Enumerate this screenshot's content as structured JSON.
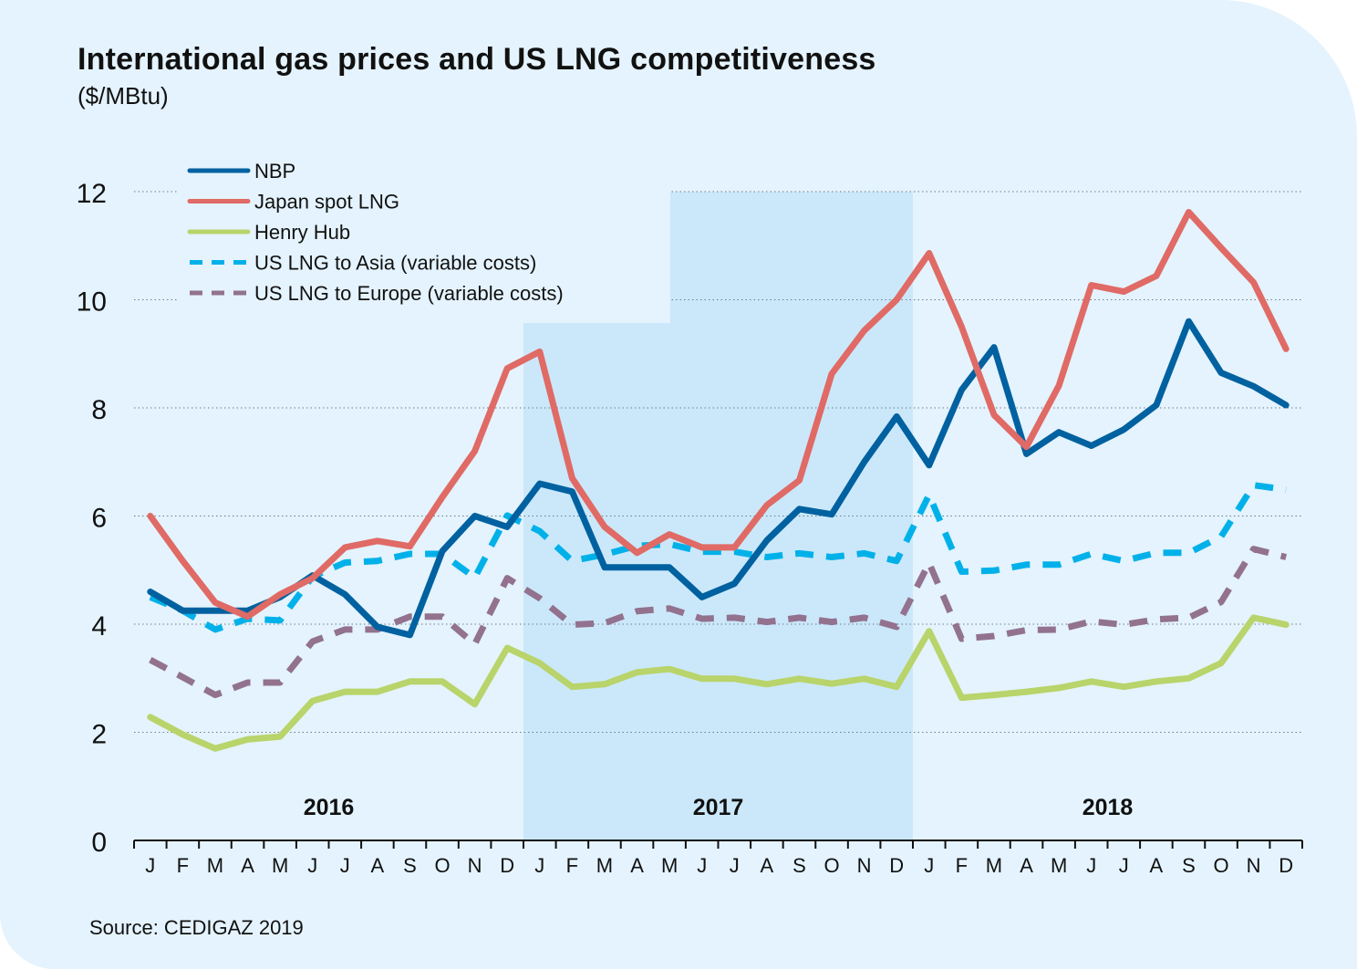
{
  "title": "International gas prices and US LNG competitiveness",
  "subtitle": "($/MBtu)",
  "source": "Source: CEDIGAZ 2019",
  "chart_data": {
    "type": "line",
    "title": "International gas prices and US LNG competitiveness",
    "ylabel": "($/MBtu)",
    "xlabel": "",
    "ylim": [
      0,
      12
    ],
    "yticks": [
      0,
      2,
      4,
      6,
      8,
      10,
      12
    ],
    "grid": true,
    "legend_position": "top-left",
    "years": [
      {
        "label": "2016",
        "shaded": false
      },
      {
        "label": "2017",
        "shaded": true
      },
      {
        "label": "2018",
        "shaded": false
      }
    ],
    "months": [
      "J",
      "F",
      "M",
      "A",
      "M",
      "J",
      "J",
      "A",
      "S",
      "O",
      "N",
      "D"
    ],
    "x": [
      "Jan 2016",
      "Feb 2016",
      "Mar 2016",
      "Apr 2016",
      "May 2016",
      "Jun 2016",
      "Jul 2016",
      "Aug 2016",
      "Sep 2016",
      "Oct 2016",
      "Nov 2016",
      "Dec 2016",
      "Jan 2017",
      "Feb 2017",
      "Mar 2017",
      "Apr 2017",
      "May 2017",
      "Jun 2017",
      "Jul 2017",
      "Aug 2017",
      "Sep 2017",
      "Oct 2017",
      "Nov 2017",
      "Dec 2017",
      "Jan 2018",
      "Feb 2018",
      "Mar 2018",
      "Apr 2018",
      "May 2018",
      "Jun 2018",
      "Jul 2018",
      "Aug 2018",
      "Sep 2018",
      "Oct 2018",
      "Nov 2018",
      "Dec 2018"
    ],
    "series": [
      {
        "name": "NBP",
        "color": "#0061a0",
        "dashed": false,
        "values": [
          4.6,
          4.25,
          4.25,
          4.25,
          4.5,
          4.9,
          4.55,
          3.95,
          3.8,
          5.35,
          6.0,
          5.8,
          6.6,
          6.45,
          5.05,
          5.05,
          5.05,
          4.5,
          4.75,
          5.55,
          6.13,
          6.03,
          7.0,
          7.84,
          6.94,
          8.33,
          9.12,
          7.15,
          7.55,
          7.3,
          7.6,
          8.05,
          9.6,
          8.65,
          8.4,
          8.05
        ]
      },
      {
        "name": "Japan spot LNG",
        "color": "#e06a65",
        "dashed": false,
        "values": [
          6.0,
          5.17,
          4.4,
          4.14,
          4.55,
          4.85,
          5.42,
          5.54,
          5.44,
          6.35,
          7.2,
          8.73,
          9.04,
          6.7,
          5.8,
          5.32,
          5.66,
          5.42,
          5.42,
          6.2,
          6.66,
          8.63,
          9.43,
          10.0,
          10.86,
          9.5,
          7.87,
          7.28,
          8.41,
          10.27,
          10.15,
          10.44,
          11.62,
          10.96,
          10.32,
          9.09
        ]
      },
      {
        "name": "Henry Hub",
        "color": "#b8d46a",
        "dashed": false,
        "values": [
          2.28,
          1.96,
          1.7,
          1.87,
          1.92,
          2.58,
          2.75,
          2.75,
          2.94,
          2.94,
          2.52,
          3.56,
          3.28,
          2.84,
          2.89,
          3.11,
          3.17,
          2.99,
          2.99,
          2.89,
          2.99,
          2.9,
          2.99,
          2.84,
          3.87,
          2.64,
          2.69,
          2.75,
          2.82,
          2.94,
          2.84,
          2.94,
          3.0,
          3.28,
          4.12,
          3.99
        ]
      },
      {
        "name": "US LNG to Asia (variable costs)",
        "color": "#00b1e9",
        "dashed": true,
        "values": [
          4.5,
          4.25,
          3.9,
          4.1,
          4.07,
          4.88,
          5.14,
          5.17,
          5.3,
          5.3,
          4.86,
          6.01,
          5.72,
          5.17,
          5.29,
          5.45,
          5.48,
          5.34,
          5.34,
          5.24,
          5.31,
          5.24,
          5.31,
          5.17,
          6.39,
          4.97,
          4.99,
          5.1,
          5.1,
          5.3,
          5.17,
          5.32,
          5.32,
          5.62,
          6.57,
          6.49
        ]
      },
      {
        "name": "US LNG to Europe (variable costs)",
        "color": "#92728e",
        "dashed": true,
        "values": [
          3.34,
          3.02,
          2.69,
          2.92,
          2.92,
          3.68,
          3.9,
          3.9,
          4.14,
          4.14,
          3.63,
          4.85,
          4.48,
          3.99,
          4.02,
          4.24,
          4.29,
          4.1,
          4.12,
          4.04,
          4.12,
          4.04,
          4.12,
          3.95,
          5.13,
          3.73,
          3.78,
          3.89,
          3.9,
          4.05,
          3.99,
          4.09,
          4.12,
          4.41,
          5.39,
          5.24
        ]
      }
    ]
  }
}
